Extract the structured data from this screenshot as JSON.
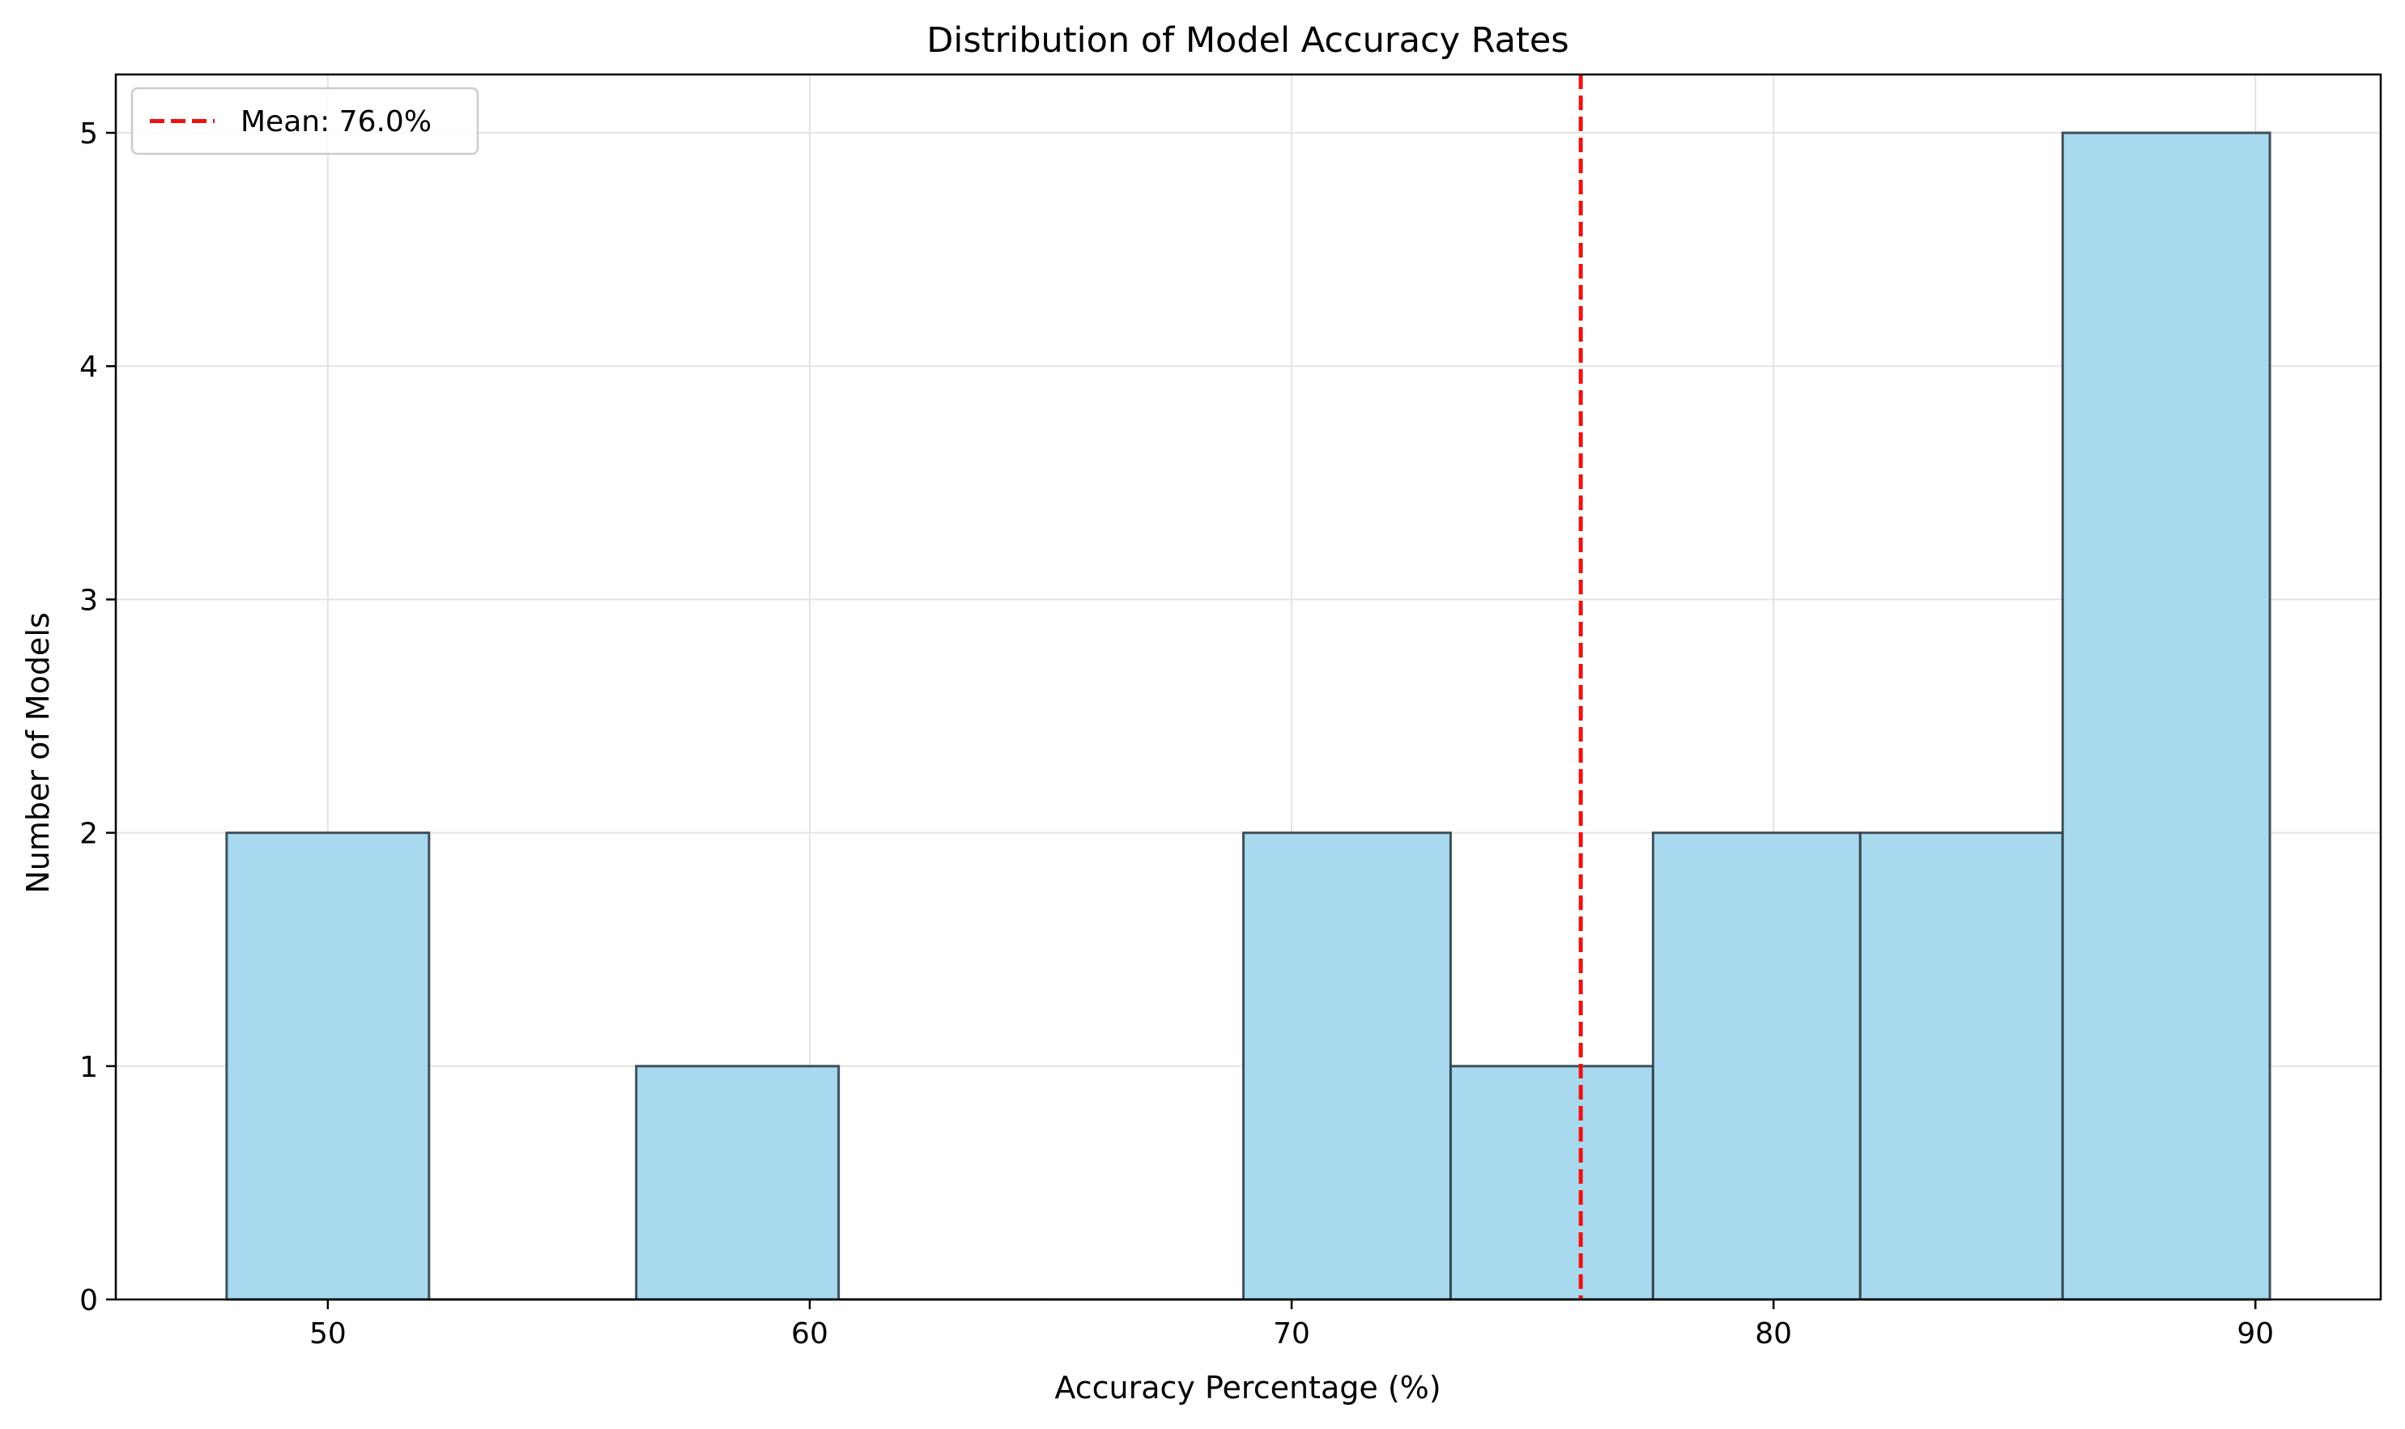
{
  "chart_data": {
    "type": "bar",
    "subtype": "histogram",
    "title": "Distribution of Model Accuracy Rates",
    "xlabel": "Accuracy Percentage (%)",
    "ylabel": "Number of Models",
    "xlim": [
      45.6,
      92.6
    ],
    "ylim": [
      0,
      5.25
    ],
    "xticks": [
      50,
      60,
      70,
      80,
      90
    ],
    "yticks": [
      0,
      1,
      2,
      3,
      4,
      5
    ],
    "bins": [
      {
        "x0": 47.9,
        "x1": 52.1,
        "count": 2
      },
      {
        "x0": 52.1,
        "x1": 56.4,
        "count": 0
      },
      {
        "x0": 56.4,
        "x1": 60.6,
        "count": 1
      },
      {
        "x0": 60.6,
        "x1": 64.8,
        "count": 0
      },
      {
        "x0": 64.8,
        "x1": 69.0,
        "count": 0
      },
      {
        "x0": 69.0,
        "x1": 73.3,
        "count": 2
      },
      {
        "x0": 73.3,
        "x1": 77.5,
        "count": 1
      },
      {
        "x0": 77.5,
        "x1": 81.8,
        "count": 2
      },
      {
        "x0": 81.8,
        "x1": 86.0,
        "count": 2
      },
      {
        "x0": 86.0,
        "x1": 90.3,
        "count": 5
      }
    ],
    "mean_line": {
      "value": 76.0,
      "label": "Mean: 76.0%",
      "color": "#ee1111",
      "style": "dashed"
    },
    "bar_color": "#a8d9ee",
    "bar_edge_color": "#2f3f48",
    "grid": true,
    "legend_position": "top-left"
  }
}
